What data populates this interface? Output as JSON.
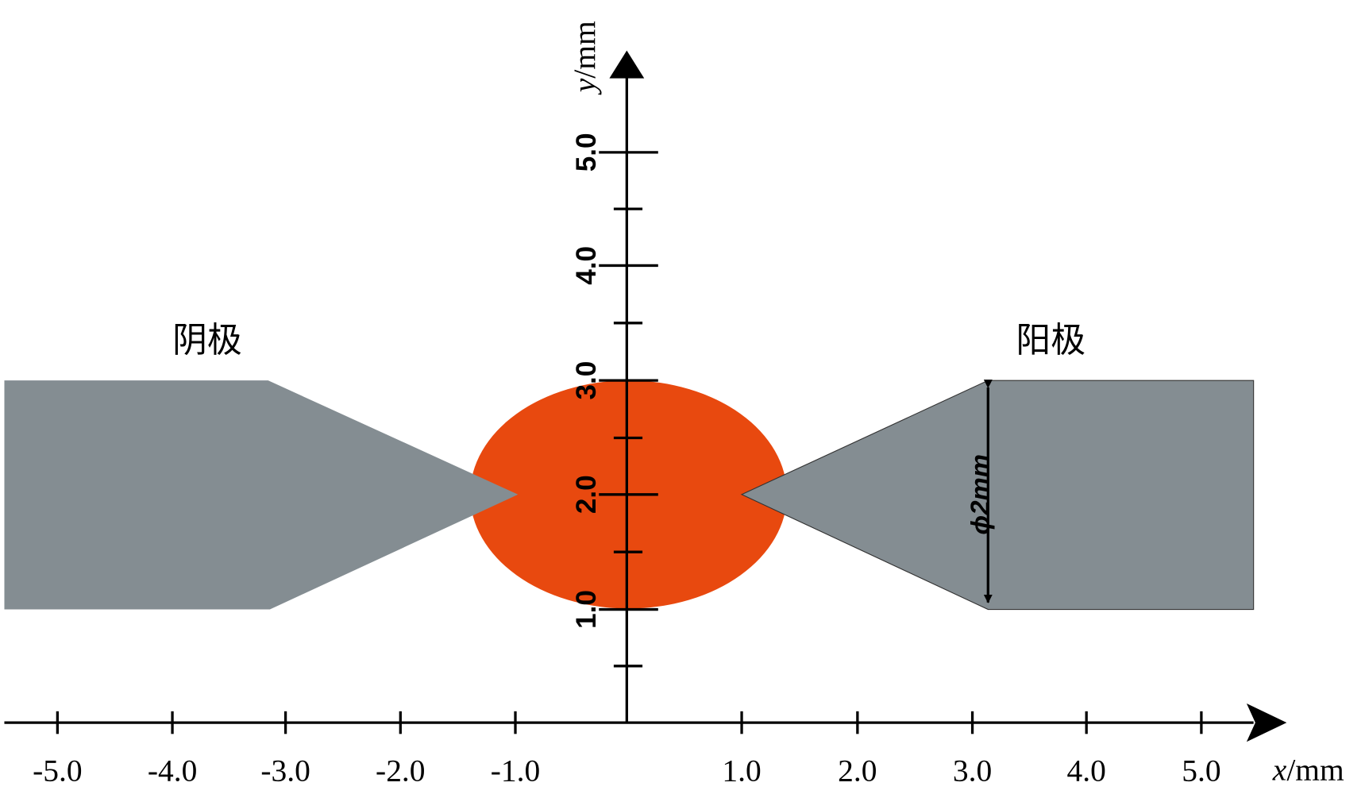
{
  "x_axis": {
    "name": "x",
    "unit": "/mm",
    "ticks": [
      "-5.0",
      "-4.0",
      "-3.0",
      "-2.0",
      "-1.0",
      "1.0",
      "2.0",
      "3.0",
      "4.0",
      "5.0"
    ]
  },
  "y_axis": {
    "name": "y",
    "unit": "/mm",
    "ticks": [
      "1.0",
      "2.0",
      "3.0",
      "4.0",
      "5.0"
    ]
  },
  "labels": {
    "cathode": "阴极",
    "anode": "阳极",
    "diameter": "ϕ2mm"
  }
}
